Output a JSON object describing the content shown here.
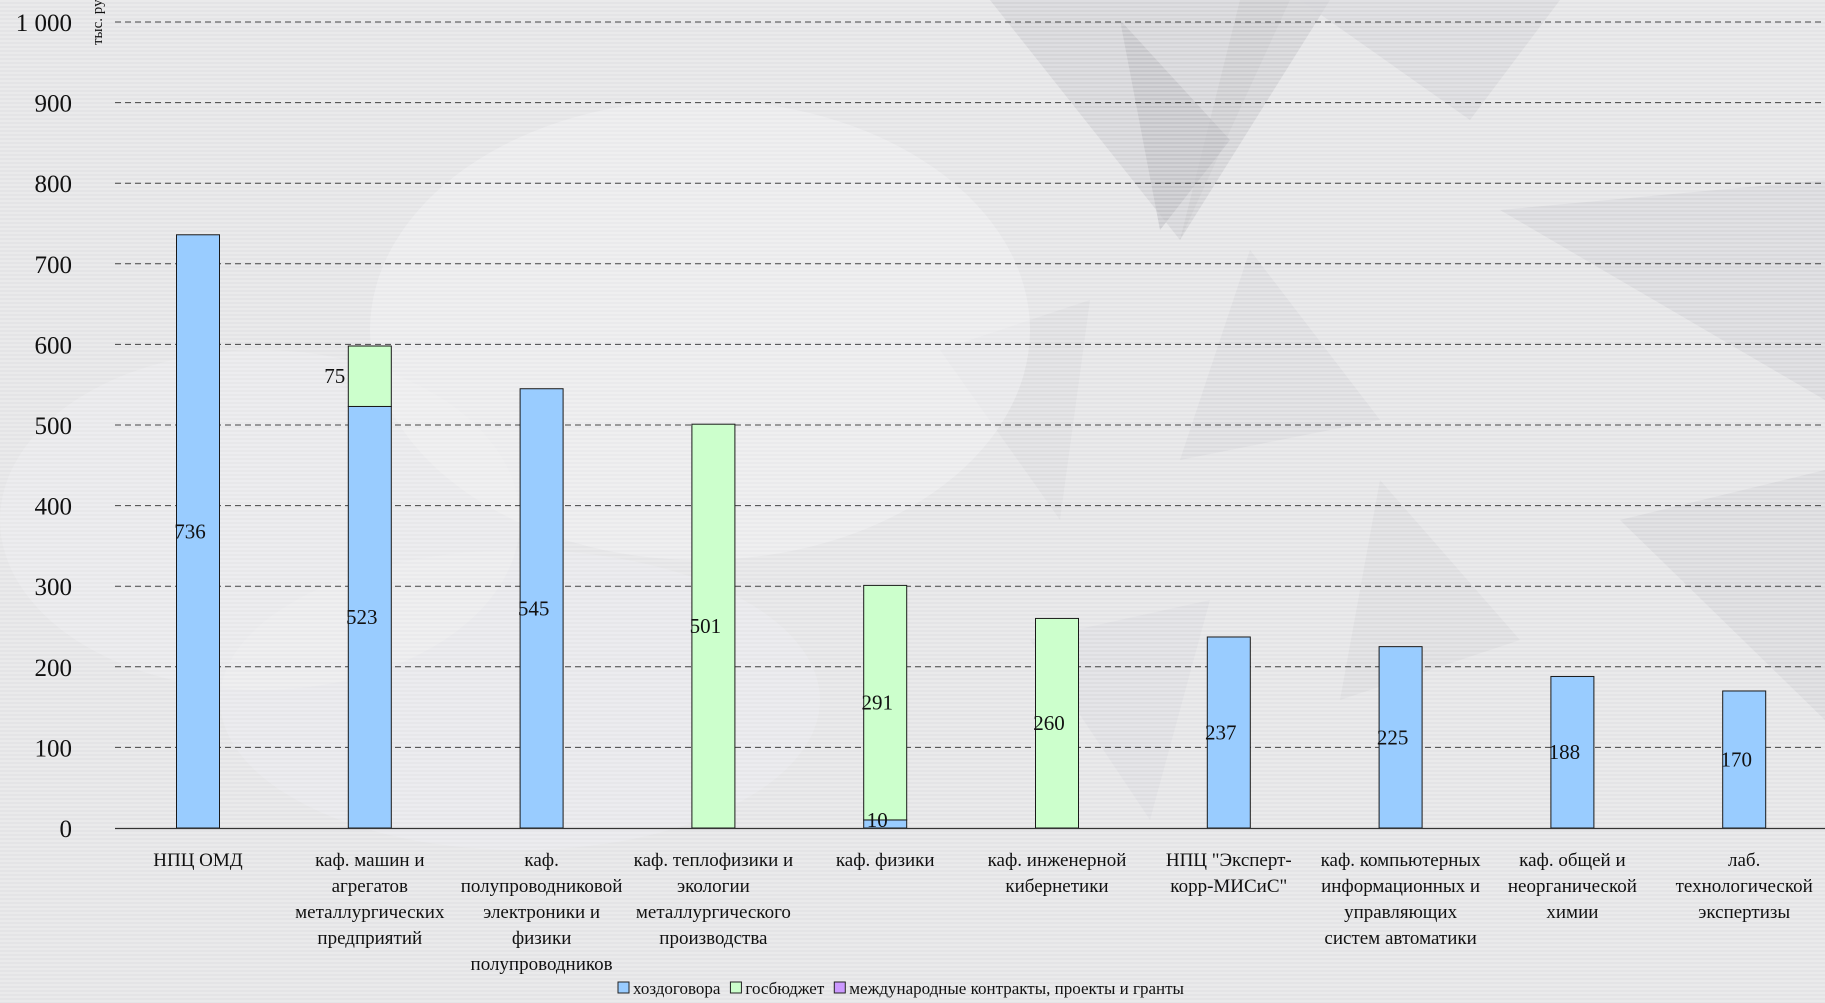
{
  "chart_data": {
    "type": "bar",
    "stacked": true,
    "ylabel": "тыс. руб.",
    "ylim": [
      0,
      1000
    ],
    "yticks": [
      "0",
      "100",
      "200",
      "300",
      "400",
      "500",
      "600",
      "700",
      "800",
      "900",
      "1 000"
    ],
    "grid": true,
    "legend_position": "bottom",
    "categories": [
      [
        "НПЦ ОМД"
      ],
      [
        "каф. машин и",
        "агрегатов",
        "металлургических",
        "предприятий"
      ],
      [
        "каф.",
        "полупроводниковой",
        "электроники и",
        "физики",
        "полупроводников"
      ],
      [
        "каф. теплофизики и",
        "экологии",
        "металлургического",
        "производства"
      ],
      [
        "каф. физики"
      ],
      [
        "каф. инженерной",
        "кибернетики"
      ],
      [
        "НПЦ \"Эксперт-",
        "корр-МИСиС\""
      ],
      [
        "каф. компьютерных",
        "информационных и",
        "управляющих",
        "систем автоматики"
      ],
      [
        "каф. общей и",
        "неорганической",
        "химии"
      ],
      [
        "лаб.",
        "технологической",
        "экспертизы"
      ]
    ],
    "series": [
      {
        "name": "хоздоговора",
        "color": "#99ccff",
        "values": [
          736,
          523,
          545,
          0,
          10,
          0,
          237,
          225,
          188,
          170
        ]
      },
      {
        "name": "госбюджет",
        "color": "#ccffcc",
        "values": [
          0,
          75,
          0,
          501,
          291,
          260,
          0,
          0,
          0,
          0
        ]
      },
      {
        "name": "международные контракты, проекты и гранты",
        "color": "#cc99ff",
        "values": [
          0,
          0,
          0,
          0,
          0,
          0,
          0,
          0,
          0,
          0
        ]
      }
    ]
  }
}
